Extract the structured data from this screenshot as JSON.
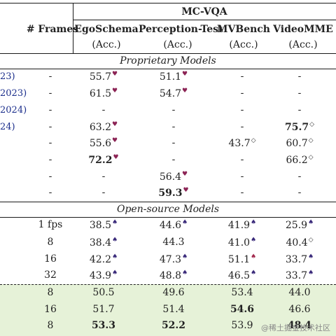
{
  "header": {
    "group": "MC-VQA",
    "frames": "# Frames",
    "columns": [
      "EgoSchema",
      "Perception-Test",
      "MVBench",
      "VideoMME"
    ],
    "acc": "(Acc.)"
  },
  "sections": {
    "proprietary": "Proprietary Models",
    "open_source": "Open-source Models"
  },
  "rows": [
    {
      "year": "23)",
      "frames": "-",
      "ego": "55.7",
      "ego_mk": "heart",
      "pt": "51.1",
      "pt_mk": "heart",
      "mvb": "-",
      "vme": "-"
    },
    {
      "year": "2023)",
      "frames": "-",
      "ego": "61.5",
      "ego_mk": "heart",
      "pt": "54.7",
      "pt_mk": "heart",
      "mvb": "-",
      "vme": "-"
    },
    {
      "year": "2024)",
      "frames": "-",
      "ego": "-",
      "pt": "-",
      "mvb": "-",
      "vme": "-"
    },
    {
      "year": "24)",
      "frames": "-",
      "ego": "63.2",
      "ego_mk": "heart",
      "pt": "-",
      "mvb": "-",
      "vme": "75.7",
      "vme_mk": "diamond",
      "vme_bold": true
    },
    {
      "year": "",
      "frames": "-",
      "ego": "55.6",
      "ego_mk": "heart",
      "pt": "-",
      "mvb": "43.7",
      "mvb_mk": "diamond",
      "vme": "60.7",
      "vme_mk": "diamond"
    },
    {
      "year": "",
      "frames": "-",
      "ego": "72.2",
      "ego_mk": "heart",
      "ego_bold": true,
      "pt": "-",
      "mvb": "-",
      "vme": "66.2",
      "vme_mk": "diamond"
    },
    {
      "year": "",
      "frames": "-",
      "ego": "-",
      "pt": "56.4",
      "pt_mk": "heart",
      "mvb": "-",
      "vme": "-"
    },
    {
      "year": "",
      "frames": "-",
      "ego": "-",
      "pt": "59.3",
      "pt_mk": "heart",
      "pt_bold": true,
      "mvb": "-",
      "vme": "-"
    },
    {
      "year": "",
      "frames": "1 fps",
      "ego": "38.5",
      "ego_mk": "spade",
      "pt": "44.6",
      "pt_mk": "spade",
      "mvb": "41.9",
      "mvb_mk": "spade",
      "vme": "25.9",
      "vme_mk": "spade"
    },
    {
      "year": "",
      "frames": "8",
      "ego": "38.4",
      "ego_mk": "spade",
      "pt": "44.3",
      "pt_mk": "",
      "mvb": "41.0",
      "mvb_mk": "spade",
      "vme": "40.4",
      "vme_mk": "diamond"
    },
    {
      "year": "",
      "frames": "16",
      "ego": "42.2",
      "ego_mk": "spade",
      "pt": "47.3",
      "pt_mk": "spade",
      "mvb": "51.1",
      "mvb_mk": "spadered",
      "vme": "33.7",
      "vme_mk": "spade"
    },
    {
      "year": "",
      "frames": "32",
      "ego": "43.9",
      "ego_mk": "spade",
      "pt": "48.8",
      "pt_mk": "spade",
      "mvb": "46.5",
      "mvb_mk": "spade",
      "vme": "33.7",
      "vme_mk": "spade"
    },
    {
      "year": "",
      "frames": "8",
      "ego": "50.5",
      "pt": "49.6",
      "mvb": "53.4",
      "vme": "44.0"
    },
    {
      "year": "",
      "frames": "16",
      "ego": "51.7",
      "pt": "51.4",
      "mvb": "54.6",
      "mvb_bold": true,
      "vme": "46.6"
    },
    {
      "year": "",
      "frames": "8",
      "ego": "53.3",
      "ego_bold": true,
      "pt": "52.2",
      "pt_bold": true,
      "mvb": "53.9",
      "vme": "48.4",
      "vme_bold": true
    }
  ],
  "watermark": "@稀土掘金技术社区"
}
